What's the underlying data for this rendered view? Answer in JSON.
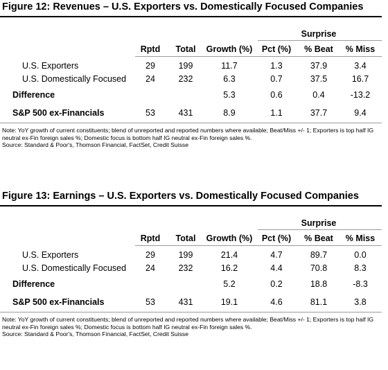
{
  "figures": [
    {
      "title": "Figure 12: Revenues – U.S. Exporters vs. Domestically Focused Companies",
      "group_header": "Surprise",
      "columns": {
        "rptd": "Rptd",
        "total": "Total",
        "growth": "Growth (%)",
        "pct": "Pct (%)",
        "beat": "% Beat",
        "miss": "% Miss"
      },
      "rows": [
        {
          "label": "U.S. Exporters",
          "rptd": "29",
          "total": "199",
          "growth": "11.7",
          "pct": "1.3",
          "beat": "37.9",
          "miss": "3.4"
        },
        {
          "label": "U.S. Domestically Focused",
          "rptd": "24",
          "total": "232",
          "growth": "6.3",
          "pct": "0.7",
          "beat": "37.5",
          "miss": "16.7"
        },
        {
          "label": "Difference",
          "growth": "5.3",
          "pct": "0.6",
          "beat": "0.4",
          "miss": "-13.2"
        },
        {
          "label": "S&P 500 ex-Financials",
          "rptd": "53",
          "total": "431",
          "growth": "8.9",
          "pct": "1.1",
          "beat": "37.7",
          "miss": "9.4"
        }
      ],
      "note": "Note: YoY growth of current constituents; blend of unreported and reported numbers where available; Beat/Miss +/- 1; Exporters is top half IG neutral ex-Fin foreign sales %; Domestic focus is bottom half IG neutral ex-Fin foreign sales %.",
      "source": "Source: Standard & Poor's, Thomson Financial, FactSet, Credit Suisse"
    },
    {
      "title": "Figure 13: Earnings – U.S. Exporters vs. Domestically Focused Companies",
      "group_header": "Surprise",
      "columns": {
        "rptd": "Rptd",
        "total": "Total",
        "growth": "Growth (%)",
        "pct": "Pct (%)",
        "beat": "% Beat",
        "miss": "% Miss"
      },
      "rows": [
        {
          "label": "U.S. Exporters",
          "rptd": "29",
          "total": "199",
          "growth": "21.4",
          "pct": "4.7",
          "beat": "89.7",
          "miss": "0.0"
        },
        {
          "label": "U.S. Domestically Focused",
          "rptd": "24",
          "total": "232",
          "growth": "16.2",
          "pct": "4.4",
          "beat": "70.8",
          "miss": "8.3"
        },
        {
          "label": "Difference",
          "growth": "5.2",
          "pct": "0.2",
          "beat": "18.8",
          "miss": "-8.3"
        },
        {
          "label": "S&P 500 ex-Financials",
          "rptd": "53",
          "total": "431",
          "growth": "19.1",
          "pct": "4.6",
          "beat": "81.1",
          "miss": "3.8"
        }
      ],
      "note": "Note: YoY growth of current constituents; blend of unreported and reported numbers where available; Beat/Miss +/- 1; Exporters is top half IG neutral ex-Fin foreign sales %; Domestic focus is bottom half IG neutral ex-Fin foreign sales %.",
      "source": "Source: Standard & Poor's, Thomson Financial, FactSet, Credit Suisse"
    }
  ]
}
